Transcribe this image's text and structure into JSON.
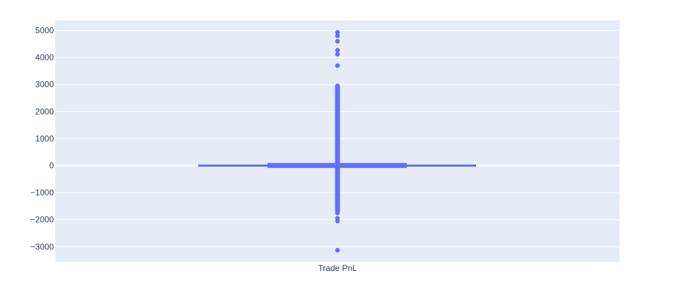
{
  "chart_data": {
    "type": "box",
    "category": "Trade PnL",
    "ylim": [
      -3600,
      5400
    ],
    "yticks": [
      5000,
      4000,
      3000,
      2000,
      1000,
      0,
      -1000,
      -2000,
      -3000
    ],
    "ytick_labels": [
      "5000",
      "4000",
      "3000",
      "2000",
      "1000",
      "0",
      "−1000",
      "−2000",
      "−3000"
    ],
    "box": {
      "q1": -60,
      "median": 0,
      "q3": 70,
      "lower_fence": -1700,
      "upper_fence": 2950
    },
    "outliers": [
      4930,
      4800,
      4600,
      4270,
      4120,
      3700,
      2950,
      2900,
      2800,
      2680,
      2600,
      -1750,
      -1950,
      -2050,
      -3130
    ],
    "colors": {
      "marker": "#636efa",
      "plot_bg": "#e5ecf6",
      "grid": "#ffffff",
      "text": "#2a3f5f"
    }
  }
}
